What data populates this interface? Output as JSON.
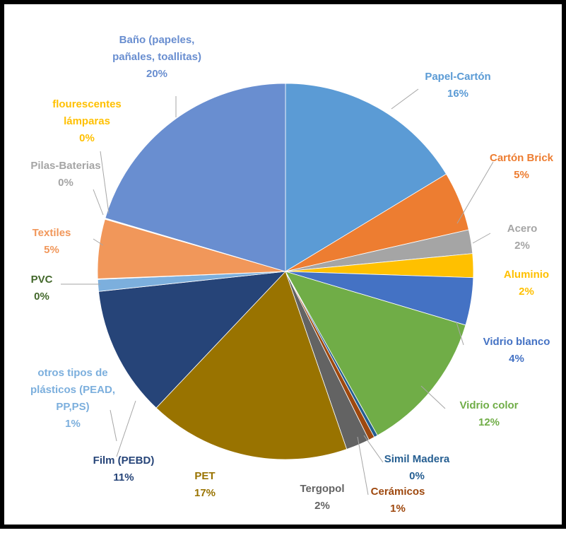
{
  "chart_data": {
    "type": "pie",
    "slices": [
      {
        "label": "Papel-Cartón",
        "value": 16,
        "pct": "16%",
        "color": "#5B9BD5",
        "text_color": "#5B9BD5"
      },
      {
        "label": "Cartón Brick",
        "value": 5,
        "pct": "5%",
        "color": "#ED7D31",
        "text_color": "#ED7D31"
      },
      {
        "label": "Acero",
        "value": 2,
        "pct": "2%",
        "color": "#A5A5A5",
        "text_color": "#A5A5A5"
      },
      {
        "label": "Aluminio",
        "value": 2,
        "pct": "2%",
        "color": "#FFC000",
        "text_color": "#FFC000"
      },
      {
        "label": "Vidrio blanco",
        "value": 4,
        "pct": "4%",
        "color": "#4472C4",
        "text_color": "#4472C4"
      },
      {
        "label": "Vidrio color",
        "value": 12,
        "pct": "12%",
        "color": "#70AD47",
        "text_color": "#70AD47"
      },
      {
        "label": "Simil Madera",
        "value": 0.3,
        "pct": "0%",
        "color": "#255E91",
        "text_color": "#255E91"
      },
      {
        "label": "Cerámicos",
        "value": 0.5,
        "pct": "1%",
        "color": "#9E480E",
        "text_color": "#9E480E"
      },
      {
        "label": "Tergopol",
        "value": 2,
        "pct": "2%",
        "color": "#636363",
        "text_color": "#636363"
      },
      {
        "label": "PET",
        "value": 17,
        "pct": "17%",
        "color": "#997300",
        "text_color": "#997300"
      },
      {
        "label": "Film (PEBD)",
        "value": 11,
        "pct": "11%",
        "color": "#264478",
        "text_color": "#264478"
      },
      {
        "label": "otros tipos de plásticos (PEAD, PP,PS)",
        "value": 1,
        "pct": "1%",
        "color": "#7CAFDD",
        "text_color": "#7CAFDD"
      },
      {
        "label": "PVC",
        "value": 0.05,
        "pct": "0%",
        "color": "#43682B",
        "text_color": "#43682B"
      },
      {
        "label": "Textiles",
        "value": 5,
        "pct": "5%",
        "color": "#F1975A",
        "text_color": "#F1975A"
      },
      {
        "label": "Pilas-Baterias",
        "value": 0.05,
        "pct": "0%",
        "color": "#B7B7B7",
        "text_color": "#A5A5A5"
      },
      {
        "label": "flourescentes lámparas",
        "value": 0.05,
        "pct": "0%",
        "color": "#FFCD33",
        "text_color": "#FFC000"
      },
      {
        "label": "Baño (papeles, pañales, toallitas)",
        "value": 20,
        "pct": "20%",
        "color": "#698ED0",
        "text_color": "#698ED0"
      }
    ],
    "labels": [
      {
        "lines": [
          "Papel-Cartón",
          "16%"
        ]
      },
      {
        "lines": [
          "Cartón Brick",
          "5%"
        ]
      },
      {
        "lines": [
          "Acero",
          "2%"
        ]
      },
      {
        "lines": [
          "Aluminio",
          "2%"
        ]
      },
      {
        "lines": [
          "Vidrio blanco",
          "4%"
        ]
      },
      {
        "lines": [
          "Vidrio color",
          "12%"
        ]
      },
      {
        "lines": [
          "Simil Madera",
          "0%"
        ]
      },
      {
        "lines": [
          "Cerámicos",
          "1%"
        ]
      },
      {
        "lines": [
          "Tergopol",
          "2%"
        ]
      },
      {
        "lines": [
          "PET",
          "17%"
        ]
      },
      {
        "lines": [
          "Film (PEBD)",
          "11%"
        ]
      },
      {
        "lines": [
          "otros tipos de",
          "plásticos (PEAD,",
          "PP,PS)",
          "1%"
        ]
      },
      {
        "lines": [
          "PVC",
          "0%"
        ]
      },
      {
        "lines": [
          "Textiles",
          "5%"
        ]
      },
      {
        "lines": [
          "Pilas-Baterias",
          "0%"
        ]
      },
      {
        "lines": [
          "flourescentes",
          "lámparas",
          "0%"
        ]
      },
      {
        "lines": [
          "Baño (papeles,",
          "pañales, toallitas)",
          "20%"
        ]
      }
    ],
    "legend": "none",
    "start": "12 o'clock, clockwise"
  }
}
